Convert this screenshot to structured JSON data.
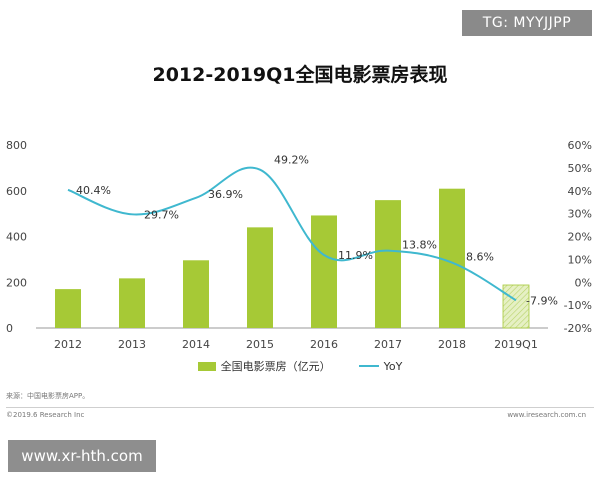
{
  "badge": "TG: MYYJJPP",
  "watermark": "www.xr-hth.com",
  "source": "来源：中国电影票房APP。",
  "copyright": "©2019.6 Research Inc",
  "site": "www.iresearch.com.cn",
  "colors": {
    "bar": "#a6c936",
    "line": "#3fb8cf",
    "forecast_bar": "#e6f0c4"
  },
  "chart_data": {
    "type": "bar",
    "title": "2012-2019Q1全国电影票房表现",
    "categories": [
      "2012",
      "2013",
      "2014",
      "2015",
      "2016",
      "2017",
      "2018",
      "2019Q1"
    ],
    "series": [
      {
        "name": "全国电影票房（亿元）",
        "type": "bar",
        "axis": "left",
        "values": [
          170,
          217,
          296,
          440,
          492,
          559,
          609,
          188
        ]
      },
      {
        "name": "YoY",
        "type": "line",
        "axis": "right",
        "values": [
          40.4,
          29.7,
          36.9,
          49.2,
          11.9,
          13.8,
          8.6,
          -7.9
        ],
        "labels": [
          "40.4%",
          "29.7%",
          "36.9%",
          "49.2%",
          "11.9%",
          "13.8%",
          "8.6%",
          "-7.9%"
        ]
      }
    ],
    "y_left": {
      "ylim": [
        0,
        800
      ],
      "ticks": [
        "0",
        "200",
        "400",
        "600",
        "800"
      ]
    },
    "y_right": {
      "ylim": [
        -20,
        60
      ],
      "ticks": [
        "-20%",
        "-10%",
        "0%",
        "10%",
        "20%",
        "30%",
        "40%",
        "50%",
        "60%"
      ]
    },
    "legend_position": "bottom"
  }
}
